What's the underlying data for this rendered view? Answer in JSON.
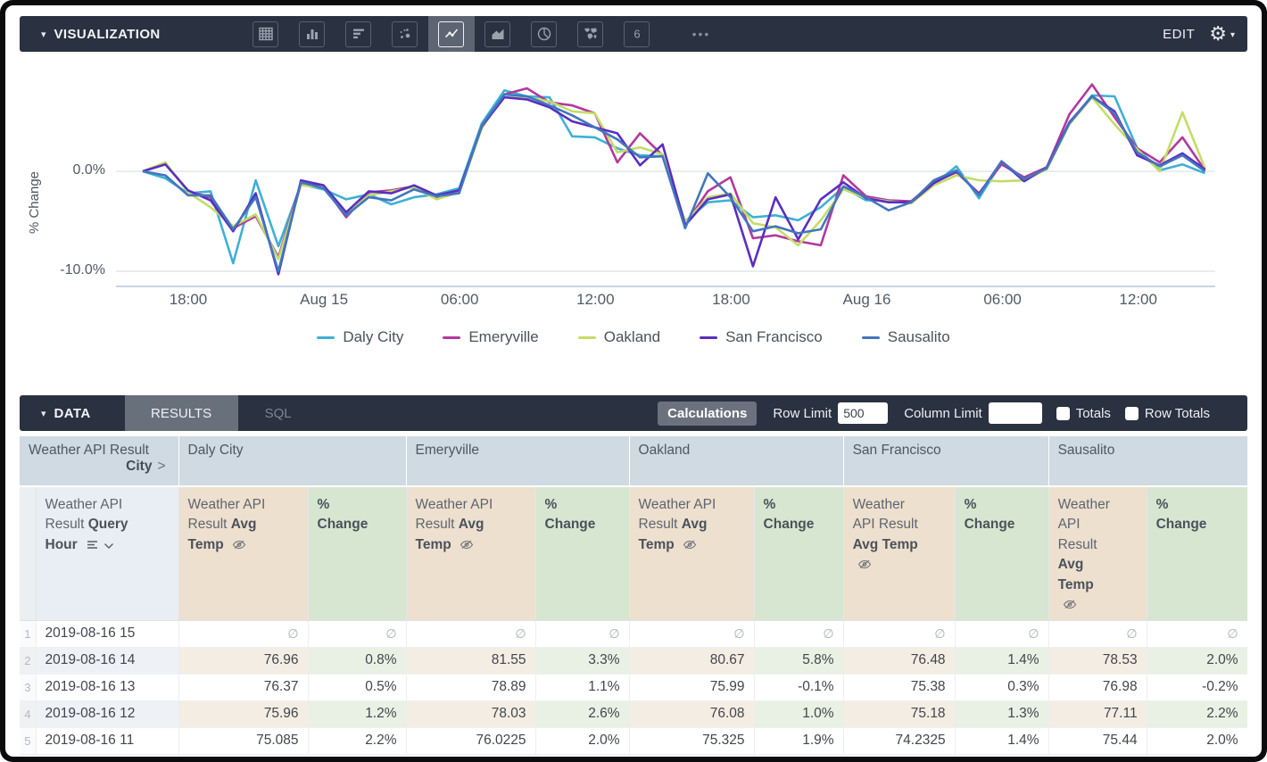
{
  "viz": {
    "title": "VISUALIZATION",
    "edit_label": "EDIT",
    "chart_types": [
      "table",
      "column",
      "bar",
      "scatter",
      "line",
      "area",
      "pie",
      "map",
      "single-value"
    ],
    "selected_chart_type": "line",
    "more_label": "•••"
  },
  "chart": {
    "y_axis_label": "% Change",
    "y_ticks": [
      "0.0%",
      "-10.0%"
    ],
    "x_ticks": [
      "18:00",
      "Aug 15",
      "06:00",
      "12:00",
      "18:00",
      "Aug 16",
      "06:00",
      "12:00"
    ]
  },
  "chart_data": {
    "type": "line",
    "title": "",
    "ylabel": "% Change",
    "ylim": [
      -11.5,
      10
    ],
    "grid": "horizontal",
    "legend_position": "bottom",
    "x_description": "hourly from Aug 14 16:00 to Aug 16 15:00",
    "x_tick_labels": [
      "18:00",
      "Aug 15",
      "06:00",
      "12:00",
      "18:00",
      "Aug 16",
      "06:00",
      "12:00"
    ],
    "series": [
      {
        "name": "Daly City",
        "color": "#3EB0D5",
        "values": [
          0.0,
          -0.7,
          -2.2,
          -2.0,
          -9.2,
          -0.9,
          -7.5,
          -1.3,
          -1.8,
          -2.8,
          -2.3,
          -3.3,
          -2.6,
          -2.3,
          -1.7,
          4.8,
          8.1,
          7.5,
          7.4,
          3.5,
          3.4,
          2.3,
          1.6,
          1.5,
          -5.0,
          -3.1,
          -2.9,
          -4.6,
          -4.4,
          -4.9,
          -3.6,
          -1.6,
          -2.9,
          -2.9,
          -3.2,
          -1.3,
          0.5,
          -2.7,
          0.9,
          -0.9,
          0.3,
          4.8,
          7.6,
          7.5,
          2.3,
          0.1,
          0.7,
          -0.2
        ]
      },
      {
        "name": "Emeryville",
        "color": "#B1399E",
        "values": [
          0.0,
          0.8,
          -2.0,
          -2.6,
          -5.7,
          -4.5,
          -8.6,
          -1.2,
          -1.5,
          -4.6,
          -2.1,
          -1.9,
          -1.5,
          -2.7,
          -2.0,
          4.4,
          7.7,
          8.3,
          6.9,
          6.6,
          5.8,
          0.9,
          3.8,
          1.6,
          -5.3,
          -2.0,
          -0.6,
          -6.7,
          -6.4,
          -7.0,
          -7.4,
          -0.4,
          -2.5,
          -2.9,
          -3.0,
          -1.1,
          -0.1,
          -2.2,
          0.7,
          -0.6,
          0.4,
          5.7,
          8.7,
          5.4,
          2.3,
          0.9,
          3.4,
          0.1
        ]
      },
      {
        "name": "Oakland",
        "color": "#C2DD67",
        "values": [
          0.0,
          0.9,
          -2.1,
          -3.6,
          -5.5,
          -4.3,
          -8.8,
          -1.4,
          -1.6,
          -4.3,
          -2.4,
          -2.0,
          -1.6,
          -2.8,
          -2.1,
          4.3,
          7.7,
          7.4,
          7.0,
          6.0,
          5.8,
          1.9,
          2.4,
          1.7,
          -5.1,
          -2.6,
          -2.2,
          -5.2,
          -5.6,
          -7.4,
          -4.9,
          -1.8,
          -2.7,
          -3.0,
          -3.2,
          -1.4,
          -0.4,
          -0.9,
          -1.0,
          -0.9,
          0.2,
          4.7,
          7.4,
          4.7,
          2.2,
          0.0,
          5.9,
          0.3
        ]
      },
      {
        "name": "San Francisco",
        "color": "#592EC2",
        "values": [
          0.0,
          0.7,
          -1.9,
          -2.9,
          -6.0,
          -2.2,
          -10.3,
          -0.9,
          -1.4,
          -4.1,
          -2.0,
          -2.2,
          -1.4,
          -2.4,
          -1.9,
          4.5,
          7.4,
          7.2,
          6.4,
          5.0,
          4.4,
          3.8,
          0.6,
          2.7,
          -5.4,
          -2.8,
          -2.3,
          -9.5,
          -2.6,
          -6.8,
          -2.8,
          -1.1,
          -2.7,
          -3.1,
          -3.1,
          -1.2,
          0.0,
          -2.3,
          1.0,
          -1.0,
          0.4,
          4.9,
          7.5,
          6.0,
          1.6,
          0.6,
          1.8,
          0.2
        ]
      },
      {
        "name": "Sausalito",
        "color": "#4276BE",
        "values": [
          0.0,
          -0.4,
          -2.4,
          -2.4,
          -5.8,
          -2.6,
          -10.0,
          -1.1,
          -1.7,
          -4.4,
          -2.6,
          -2.9,
          -1.8,
          -2.5,
          -2.2,
          4.6,
          7.7,
          7.5,
          6.6,
          5.6,
          4.4,
          3.2,
          1.4,
          1.5,
          -5.7,
          -0.2,
          -2.6,
          -6.0,
          -5.5,
          -6.2,
          -5.8,
          -1.5,
          -2.6,
          -3.9,
          -3.1,
          -0.9,
          0.1,
          -2.4,
          1.0,
          -0.8,
          0.3,
          4.8,
          7.5,
          5.8,
          1.9,
          0.5,
          1.6,
          0.0
        ]
      }
    ]
  },
  "data_bar": {
    "title": "DATA",
    "tabs": [
      {
        "label": "RESULTS",
        "active": true
      },
      {
        "label": "SQL",
        "active": false
      }
    ],
    "calculations_label": "Calculations",
    "row_limit_label": "Row Limit",
    "row_limit_value": "500",
    "column_limit_label": "Column Limit",
    "column_limit_value": "",
    "totals_label": "Totals",
    "totals_checked": false,
    "row_totals_label": "Row Totals",
    "row_totals_checked": false
  },
  "table": {
    "pivot_dimension_prefix": "Weather API Result",
    "pivot_dimension_field": "City",
    "pivot_chevron": ">",
    "cities": [
      "Daly City",
      "Emeryville",
      "Oakland",
      "San Francisco",
      "Sausalito"
    ],
    "row_header_prefix": "Weather API Result",
    "row_header_field": "Query Hour",
    "temp_header_prefix": "Weather API Result",
    "temp_header_field": "Avg Temp",
    "change_header_line1": "%",
    "change_header_line2": "Change",
    "null_symbol": "∅",
    "rows": [
      {
        "num": "1",
        "hour": "2019-08-16 15",
        "cells": [
          "∅",
          "∅",
          "∅",
          "∅",
          "∅",
          "∅",
          "∅",
          "∅",
          "∅",
          "∅"
        ]
      },
      {
        "num": "2",
        "hour": "2019-08-16 14",
        "cells": [
          "76.96",
          "0.8%",
          "81.55",
          "3.3%",
          "80.67",
          "5.8%",
          "76.48",
          "1.4%",
          "78.53",
          "2.0%"
        ]
      },
      {
        "num": "3",
        "hour": "2019-08-16 13",
        "cells": [
          "76.37",
          "0.5%",
          "78.89",
          "1.1%",
          "75.99",
          "-0.1%",
          "75.38",
          "0.3%",
          "76.98",
          "-0.2%"
        ]
      },
      {
        "num": "4",
        "hour": "2019-08-16 12",
        "cells": [
          "75.96",
          "1.2%",
          "78.03",
          "2.6%",
          "76.08",
          "1.0%",
          "75.18",
          "1.3%",
          "77.11",
          "2.2%"
        ]
      },
      {
        "num": "5",
        "hour": "2019-08-16 11",
        "cells": [
          "75.085",
          "2.2%",
          "76.0225",
          "2.0%",
          "75.325",
          "1.9%",
          "74.2325",
          "1.4%",
          "75.44",
          "2.0%"
        ]
      }
    ]
  },
  "colors": {
    "bar_background": "#2a3140",
    "active_tab": "#68707c",
    "pivot_header": "#cfdae2",
    "temp_header": "#eee0ce",
    "change_header": "#d7e6d0",
    "gridline": "#e4e5e7",
    "axis_line": "#c9d5e2"
  }
}
